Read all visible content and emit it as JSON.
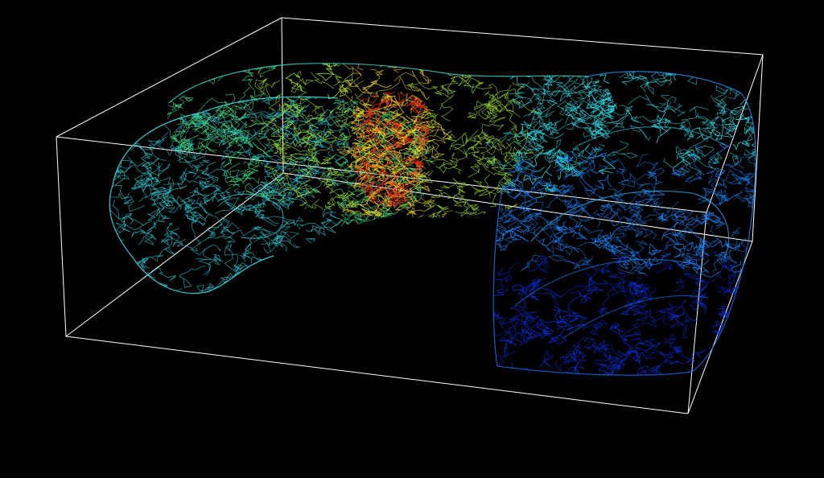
{
  "scene": {
    "background": "#000000",
    "bounding_box_color": "#ffffff",
    "render_style": "wireframe streamlines",
    "colormap": [
      "#0a2fd8",
      "#1a7ff0",
      "#2fd6e0",
      "#3fe08a",
      "#9fe02a",
      "#e8d020",
      "#e83018"
    ],
    "regions": [
      {
        "name": "left-lobe",
        "dominant_color": "#2fd6e0"
      },
      {
        "name": "center-hot-core",
        "dominant_color": "#e83018"
      },
      {
        "name": "center-warm-band",
        "dominant_color": "#9fe02a"
      },
      {
        "name": "right-cold-block",
        "dominant_color": "#1a6ff0"
      }
    ]
  }
}
